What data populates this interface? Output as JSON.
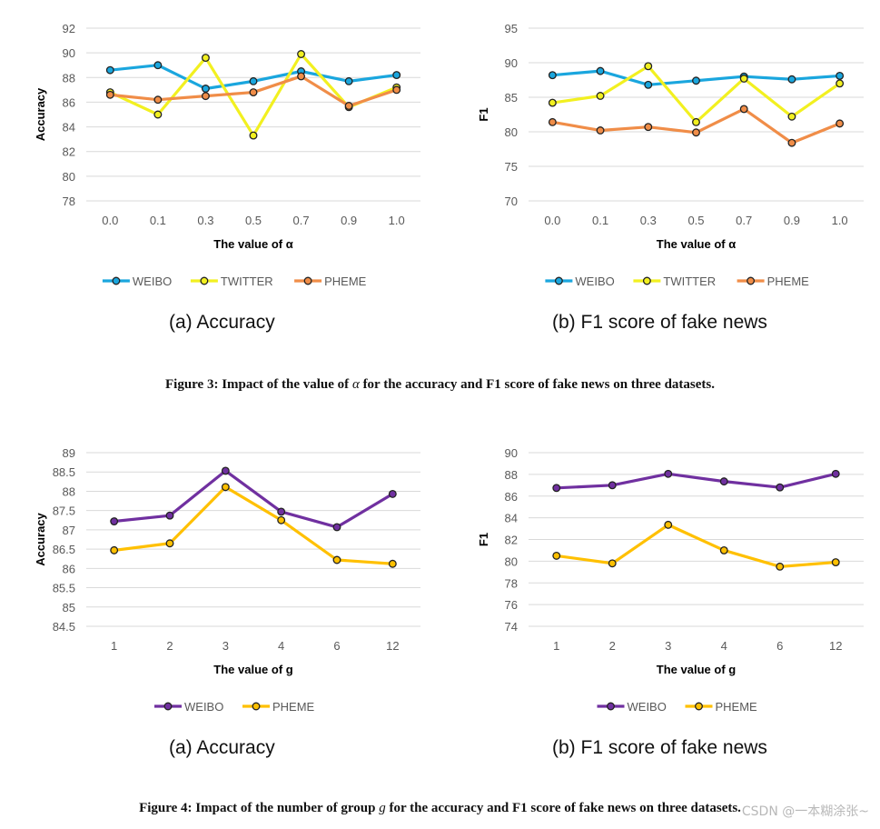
{
  "chart_data": [
    {
      "id": "fig3a",
      "type": "line",
      "categories": [
        "0.0",
        "0.1",
        "0.3",
        "0.5",
        "0.7",
        "0.9",
        "1.0"
      ],
      "xlabel": "The value of α",
      "ylabel": "Accuracy",
      "ylim": [
        78,
        92
      ],
      "yticks": [
        78,
        80,
        82,
        84,
        86,
        88,
        90,
        92
      ],
      "grid": true,
      "legend": "bottom",
      "series": [
        {
          "name": "WEIBO",
          "color": "#1aa6de",
          "values": [
            88.6,
            89.0,
            87.1,
            87.7,
            88.5,
            87.7,
            88.2
          ]
        },
        {
          "name": "TWITTER",
          "color": "#f2f020",
          "values": [
            86.8,
            85.0,
            89.6,
            83.3,
            89.9,
            85.6,
            87.2
          ]
        },
        {
          "name": "PHEME",
          "color": "#f08d48",
          "values": [
            86.6,
            86.2,
            86.5,
            86.8,
            88.1,
            85.7,
            87.0
          ]
        }
      ]
    },
    {
      "id": "fig3b",
      "type": "line",
      "categories": [
        "0.0",
        "0.1",
        "0.3",
        "0.5",
        "0.7",
        "0.9",
        "1.0"
      ],
      "xlabel": "The value of α",
      "ylabel": "F1",
      "ylim": [
        70,
        95
      ],
      "yticks": [
        70,
        75,
        80,
        85,
        90,
        95
      ],
      "grid": true,
      "legend": "bottom",
      "series": [
        {
          "name": "WEIBO",
          "color": "#1aa6de",
          "values": [
            88.2,
            88.8,
            86.8,
            87.4,
            88.0,
            87.6,
            88.1
          ]
        },
        {
          "name": "TWITTER",
          "color": "#f2f020",
          "values": [
            84.2,
            85.2,
            89.5,
            81.4,
            87.7,
            82.2,
            87.0
          ]
        },
        {
          "name": "PHEME",
          "color": "#f08d48",
          "values": [
            81.4,
            80.2,
            80.7,
            79.9,
            83.3,
            78.4,
            81.2
          ]
        }
      ]
    },
    {
      "id": "fig4a",
      "type": "line",
      "categories": [
        "1",
        "2",
        "3",
        "4",
        "6",
        "12"
      ],
      "xlabel": "The value of g",
      "ylabel": "Accuracy",
      "ylim": [
        84.5,
        89
      ],
      "yticks": [
        84.5,
        85,
        85.5,
        86,
        86.5,
        87,
        87.5,
        88,
        88.5,
        89
      ],
      "grid": true,
      "legend": "bottom",
      "series": [
        {
          "name": "WEIBO",
          "color": "#7030a0",
          "values": [
            87.22,
            87.37,
            88.53,
            87.47,
            87.07,
            87.93
          ]
        },
        {
          "name": "PHEME",
          "color": "#ffc000",
          "values": [
            86.47,
            86.65,
            88.11,
            87.25,
            86.22,
            86.12
          ]
        }
      ]
    },
    {
      "id": "fig4b",
      "type": "line",
      "categories": [
        "1",
        "2",
        "3",
        "4",
        "6",
        "12"
      ],
      "xlabel": "The value of g",
      "ylabel": "F1",
      "ylim": [
        74,
        90
      ],
      "yticks": [
        74,
        76,
        78,
        80,
        82,
        84,
        86,
        88,
        90
      ],
      "grid": true,
      "legend": "bottom",
      "series": [
        {
          "name": "WEIBO",
          "color": "#7030a0",
          "values": [
            86.75,
            87.0,
            88.05,
            87.35,
            86.8,
            88.05
          ]
        },
        {
          "name": "PHEME",
          "color": "#ffc000",
          "values": [
            80.5,
            79.8,
            83.35,
            81.0,
            79.5,
            79.9
          ]
        }
      ]
    }
  ],
  "subcaptions": {
    "fig3a": "(a) Accuracy",
    "fig3b": "(b) F1 score of fake news",
    "fig4a": "(a) Accuracy",
    "fig4b": "(b) F1 score of fake news"
  },
  "figure3": {
    "prefix": "Figure 3: Impact of the value of ",
    "symbol": "α",
    "suffix": " for the accuracy and F1 score of fake news on three datasets."
  },
  "figure4": {
    "prefix": "Figure 4: Impact of the number of group ",
    "symbol": "g",
    "suffix": " for the accuracy and F1 score of fake news on three datasets."
  },
  "watermark": "CSDN @一本糊涂张~"
}
